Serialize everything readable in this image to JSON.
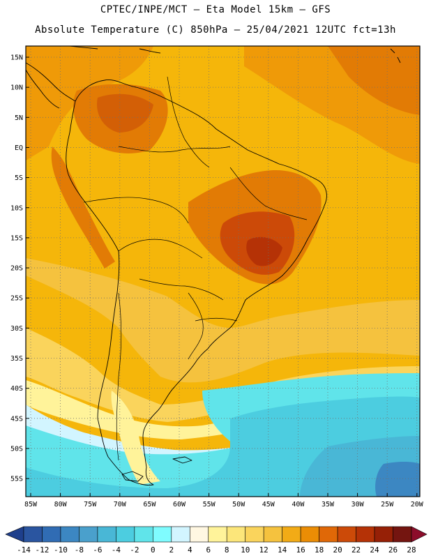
{
  "header": {
    "line1": "CPTEC/INPE/MCT –  Eta Model 15km – GFS",
    "line2": "Absolute Temperature (C) 850hPa – 25/04/2021 12UTC fct=13h"
  },
  "map": {
    "lat_labels": [
      "15N",
      "10N",
      "5N",
      "EQ",
      "5S",
      "10S",
      "15S",
      "20S",
      "25S",
      "30S",
      "35S",
      "40S",
      "45S",
      "50S",
      "55S"
    ],
    "lon_labels": [
      "85W",
      "80W",
      "75W",
      "70W",
      "65W",
      "60W",
      "55W",
      "50W",
      "45W",
      "40W",
      "35W",
      "30W",
      "25W",
      "20W"
    ]
  },
  "colorbar": {
    "ticks": [
      "-14",
      "-12",
      "-10",
      "-8",
      "-6",
      "-4",
      "-2",
      "0",
      "2",
      "4",
      "6",
      "8",
      "10",
      "12",
      "14",
      "16",
      "18",
      "20",
      "22",
      "24",
      "26",
      "28"
    ],
    "colors": [
      "#1e3f8c",
      "#2a55a0",
      "#306cb4",
      "#3c87c2",
      "#4aa0cc",
      "#49b7d6",
      "#4ccde0",
      "#60e4ea",
      "#7ffcff",
      "#d2f5ff",
      "#fff7e2",
      "#fff39a",
      "#fce67a",
      "#fad45c",
      "#f5c23e",
      "#f2ab16",
      "#eb8d05",
      "#e06807",
      "#cc4a08",
      "#b53206",
      "#962006",
      "#741510",
      "#8c0d2b"
    ]
  }
}
